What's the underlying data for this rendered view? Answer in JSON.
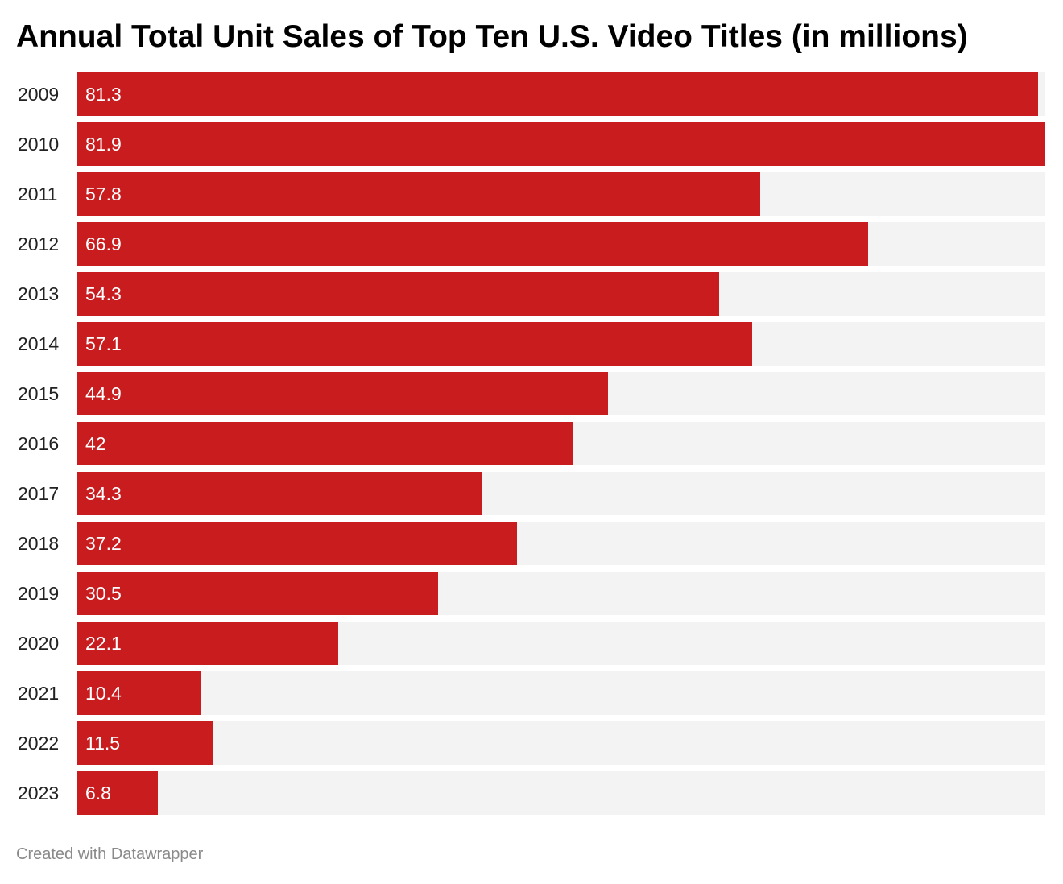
{
  "chart_data": {
    "type": "bar",
    "orientation": "horizontal",
    "title": "Annual Total Unit Sales of Top Ten U.S. Video Titles (in millions)",
    "categories": [
      "2009",
      "2010",
      "2011",
      "2012",
      "2013",
      "2014",
      "2015",
      "2016",
      "2017",
      "2018",
      "2019",
      "2020",
      "2021",
      "2022",
      "2023"
    ],
    "values": [
      81.3,
      81.9,
      57.8,
      66.9,
      54.3,
      57.1,
      44.9,
      42,
      34.3,
      37.2,
      30.5,
      22.1,
      10.4,
      11.5,
      6.8
    ],
    "value_labels": [
      "81.3",
      "81.9",
      "57.8",
      "66.9",
      "54.3",
      "57.1",
      "44.9",
      "42",
      "34.3",
      "37.2",
      "30.5",
      "22.1",
      "10.4",
      "11.5",
      "6.8"
    ],
    "xlim": [
      0,
      81.9
    ],
    "grid": false,
    "colors": {
      "bar": "#c81c1e",
      "bar_background": "#f3f3f3"
    }
  },
  "footer": {
    "credit": "Created with Datawrapper"
  }
}
